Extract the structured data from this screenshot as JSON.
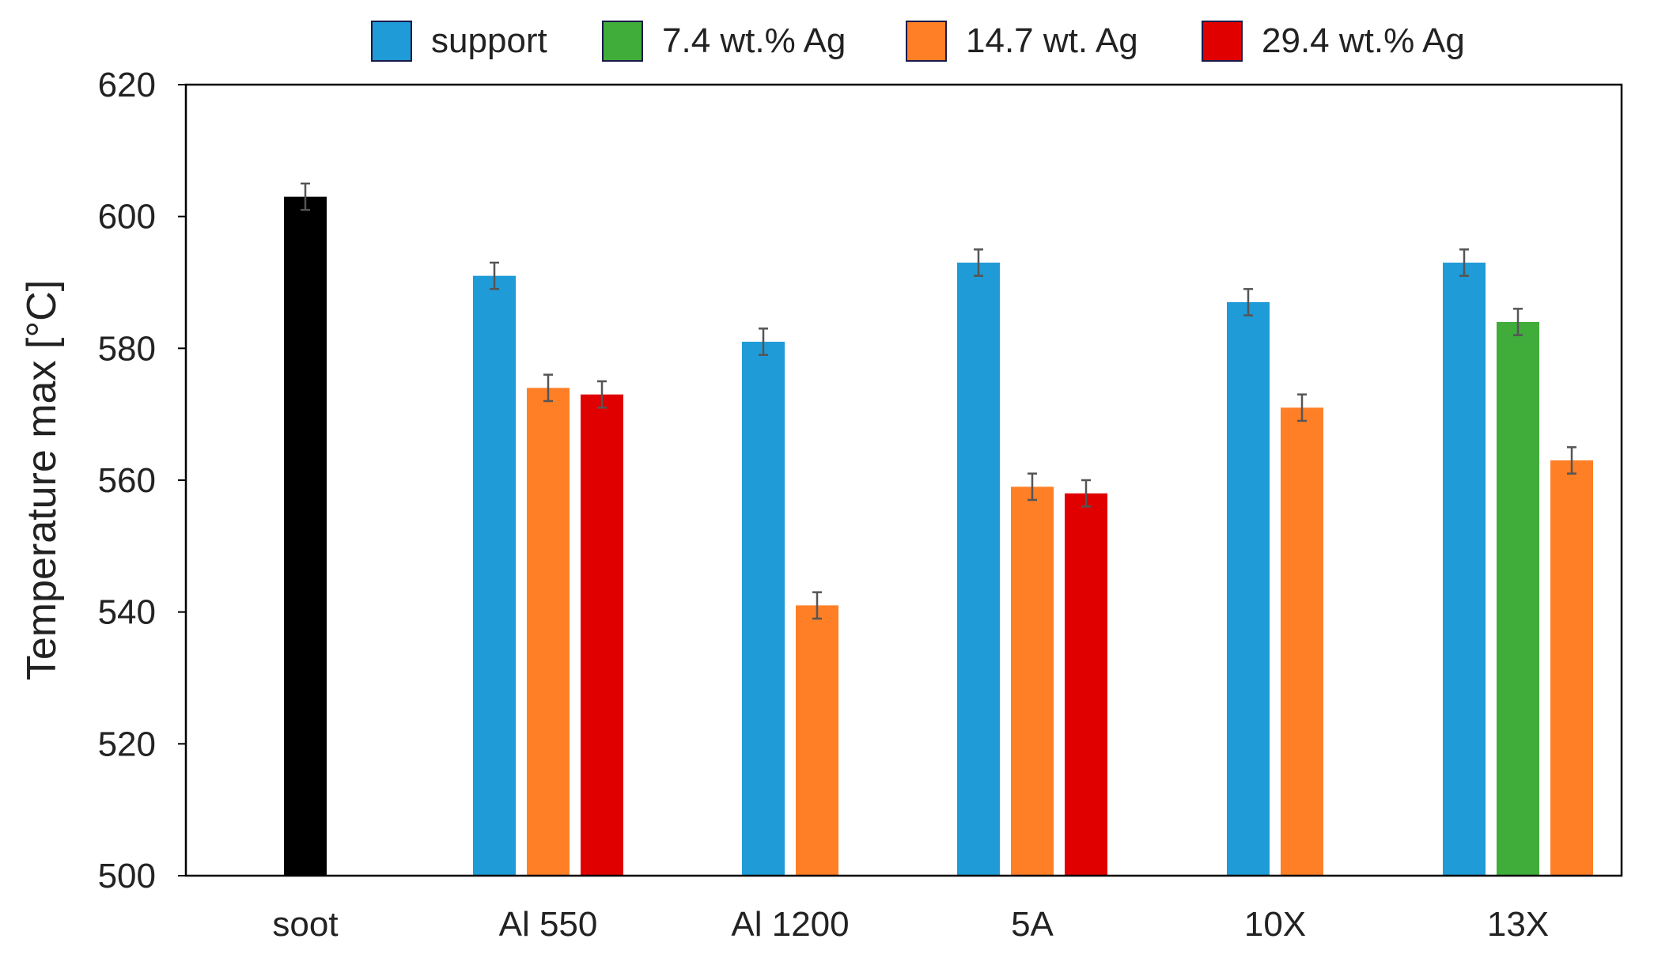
{
  "chart_data": {
    "type": "bar",
    "title": "",
    "xlabel": "",
    "ylabel": "Temperature max [°C]",
    "ylim": [
      500,
      620
    ],
    "yticks": [
      500,
      520,
      540,
      560,
      580,
      600,
      620
    ],
    "grid": false,
    "legend_position": "top",
    "categories": [
      "soot",
      "Al 550",
      "Al 1200",
      "5A",
      "10X",
      "13X"
    ],
    "legend": [
      {
        "name": "support",
        "color": "#1F9BD7"
      },
      {
        "name": "7.4 wt.% Ag",
        "color": "#40AD3A"
      },
      {
        "name": "14.7 wt. Ag",
        "color": "#FF7F27"
      },
      {
        "name": "29.4 wt.% Ag",
        "color": "#E00000"
      }
    ],
    "groups": [
      {
        "category": "soot",
        "bars": [
          {
            "series": "soot",
            "value": 603,
            "error": 2,
            "color": "#000000"
          }
        ]
      },
      {
        "category": "Al 550",
        "bars": [
          {
            "series": "support",
            "value": 591,
            "error": 2,
            "color": "#1F9BD7"
          },
          {
            "series": "14.7 wt. Ag",
            "value": 574,
            "error": 2,
            "color": "#FF7F27"
          },
          {
            "series": "29.4 wt.% Ag",
            "value": 573,
            "error": 2,
            "color": "#E00000"
          }
        ]
      },
      {
        "category": "Al 1200",
        "bars": [
          {
            "series": "support",
            "value": 581,
            "error": 2,
            "color": "#1F9BD7"
          },
          {
            "series": "14.7 wt. Ag",
            "value": 541,
            "error": 2,
            "color": "#FF7F27"
          }
        ]
      },
      {
        "category": "5A",
        "bars": [
          {
            "series": "support",
            "value": 593,
            "error": 2,
            "color": "#1F9BD7"
          },
          {
            "series": "14.7 wt. Ag",
            "value": 559,
            "error": 2,
            "color": "#FF7F27"
          },
          {
            "series": "29.4 wt.% Ag",
            "value": 558,
            "error": 2,
            "color": "#E00000"
          }
        ]
      },
      {
        "category": "10X",
        "bars": [
          {
            "series": "support",
            "value": 587,
            "error": 2,
            "color": "#1F9BD7"
          },
          {
            "series": "14.7 wt. Ag",
            "value": 571,
            "error": 2,
            "color": "#FF7F27"
          }
        ]
      },
      {
        "category": "13X",
        "bars": [
          {
            "series": "support",
            "value": 593,
            "error": 2,
            "color": "#1F9BD7"
          },
          {
            "series": "7.4 wt.% Ag",
            "value": 584,
            "error": 2,
            "color": "#40AD3A"
          },
          {
            "series": "14.7 wt. Ag",
            "value": 563,
            "error": 2,
            "color": "#FF7F27"
          }
        ]
      }
    ]
  }
}
